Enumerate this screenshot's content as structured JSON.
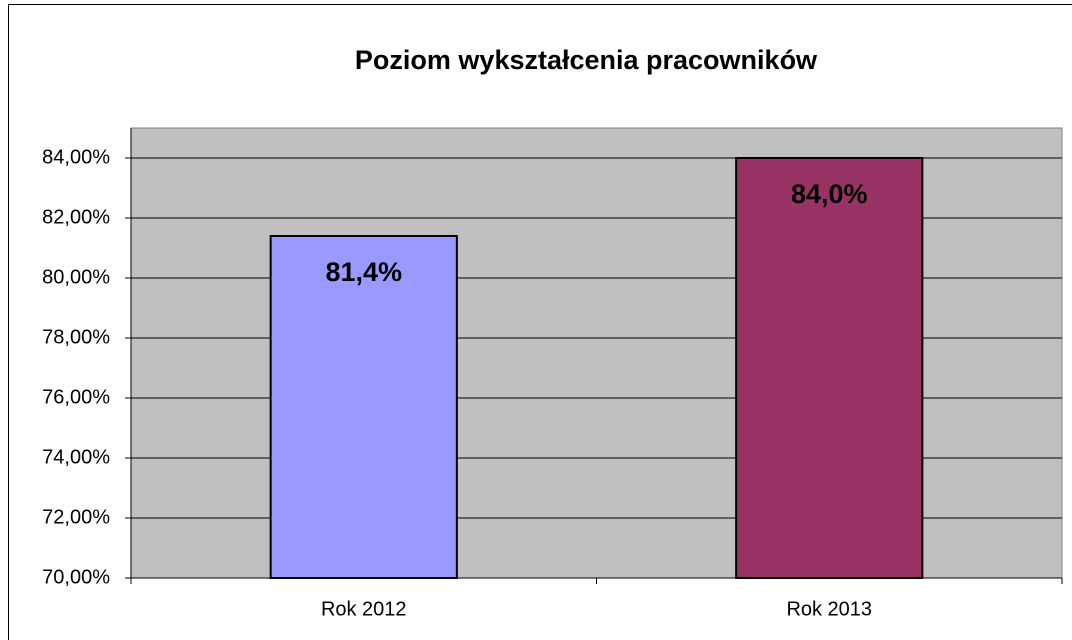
{
  "chart_data": {
    "type": "bar",
    "title": "Poziom wykształcenia pracowników",
    "categories": [
      "Rok 2012",
      "Rok 2013"
    ],
    "series": [
      {
        "name": "Poziom wykształcenia",
        "colors": [
          "#9999ff",
          "#993366"
        ],
        "values": [
          81.4,
          84.0
        ],
        "value_labels": [
          "81,4%",
          "84,0%"
        ]
      }
    ],
    "ylim": [
      70,
      85
    ],
    "yticks": [
      {
        "value": 70,
        "label": "70,00%"
      },
      {
        "value": 72,
        "label": "72,00%"
      },
      {
        "value": 74,
        "label": "74,00%"
      },
      {
        "value": 76,
        "label": "76,00%"
      },
      {
        "value": 78,
        "label": "78,00%"
      },
      {
        "value": 80,
        "label": "80,00%"
      },
      {
        "value": 82,
        "label": "82,00%"
      },
      {
        "value": 84,
        "label": "84,00%"
      }
    ],
    "grid": true
  }
}
